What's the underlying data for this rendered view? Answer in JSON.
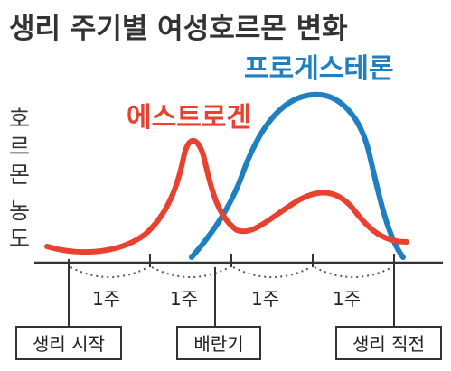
{
  "title": "생리 주기별 여성호르몬 변화",
  "y_label_chars": [
    "호",
    "르",
    "몬",
    "농",
    "도"
  ],
  "series": {
    "estrogen": {
      "label": "에스트로겐",
      "color": "#e8412f"
    },
    "progesterone": {
      "label": "프로게스테론",
      "color": "#1f7fc1"
    }
  },
  "weeks": [
    "1주",
    "1주",
    "1주",
    "1주"
  ],
  "milestones": [
    "생리 시작",
    "배란기",
    "생리 직전"
  ],
  "axis_color": "#333333"
}
